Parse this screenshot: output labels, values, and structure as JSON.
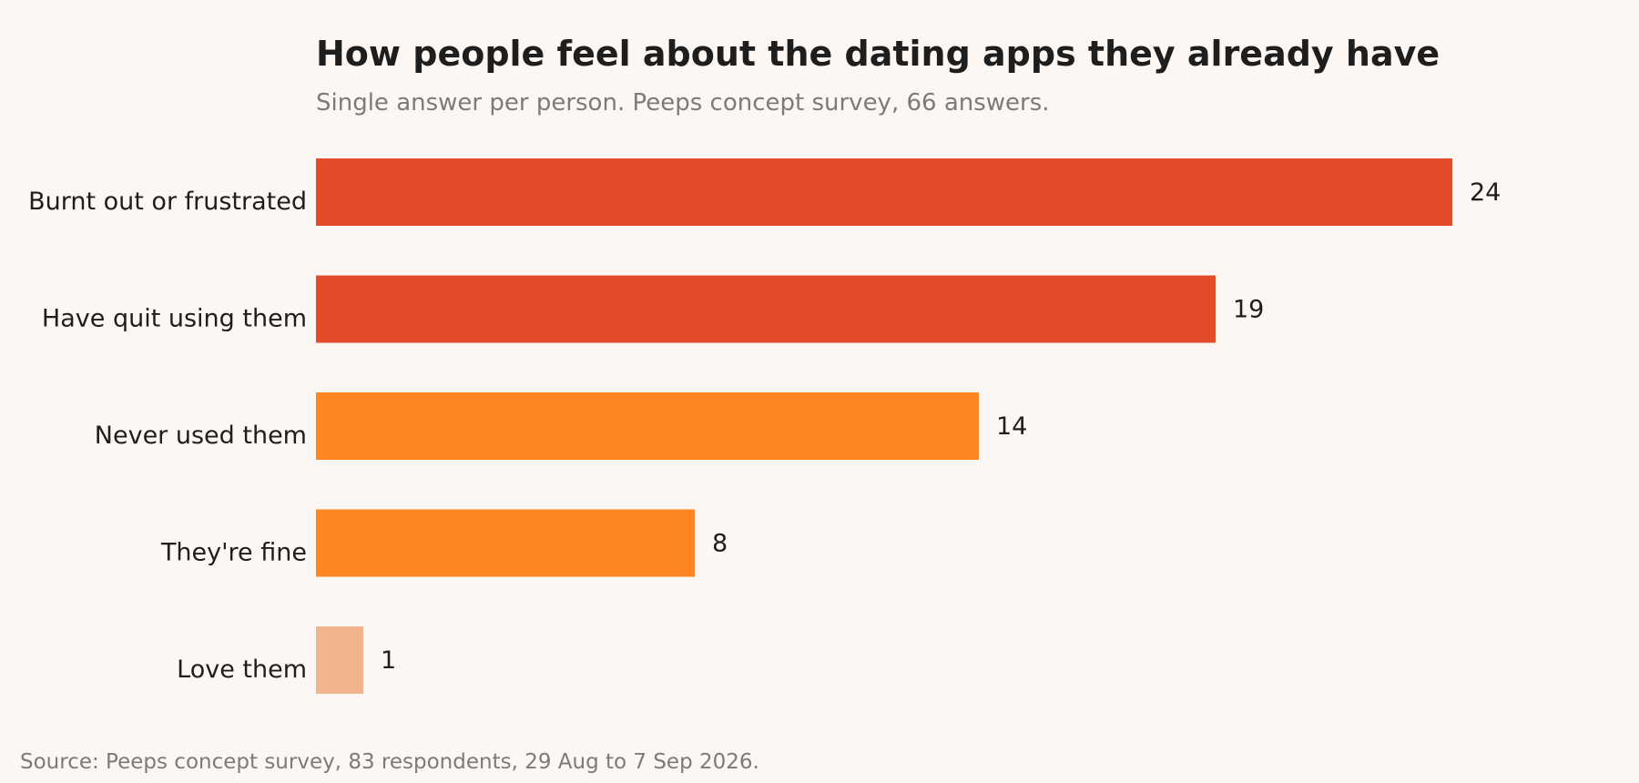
{
  "chart_data": {
    "type": "bar",
    "orientation": "horizontal",
    "title": "How people feel about the dating apps they already have",
    "subtitle": "Single answer per person. Peeps concept survey, 66 answers.",
    "source": "Source: Peeps concept survey, 83 respondents, 29 Aug to 7 Sep 2026.",
    "categories": [
      "Burnt out or frustrated",
      "Have quit using them",
      "Never used them",
      "They're fine",
      "Love them"
    ],
    "values": [
      24,
      19,
      14,
      8,
      1
    ],
    "data_labels": [
      "24",
      "19",
      "14",
      "8",
      "1"
    ],
    "bar_colors": [
      "#e24c2b",
      "#e24c2b",
      "#fe8520",
      "#fe8520",
      "#f2b48f"
    ],
    "xlim": [
      0,
      24
    ],
    "grid": false,
    "legend": "none"
  }
}
